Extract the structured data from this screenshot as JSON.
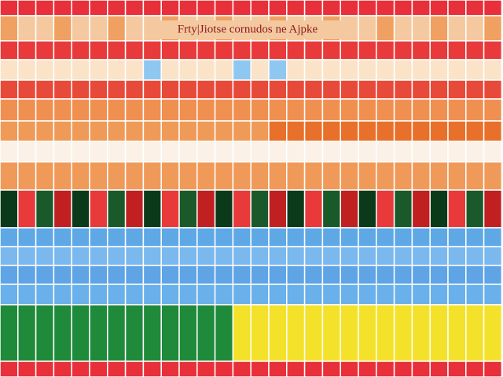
{
  "header": {
    "title": "Frty|Jiotse cornudos ne Ajpke"
  }
}
